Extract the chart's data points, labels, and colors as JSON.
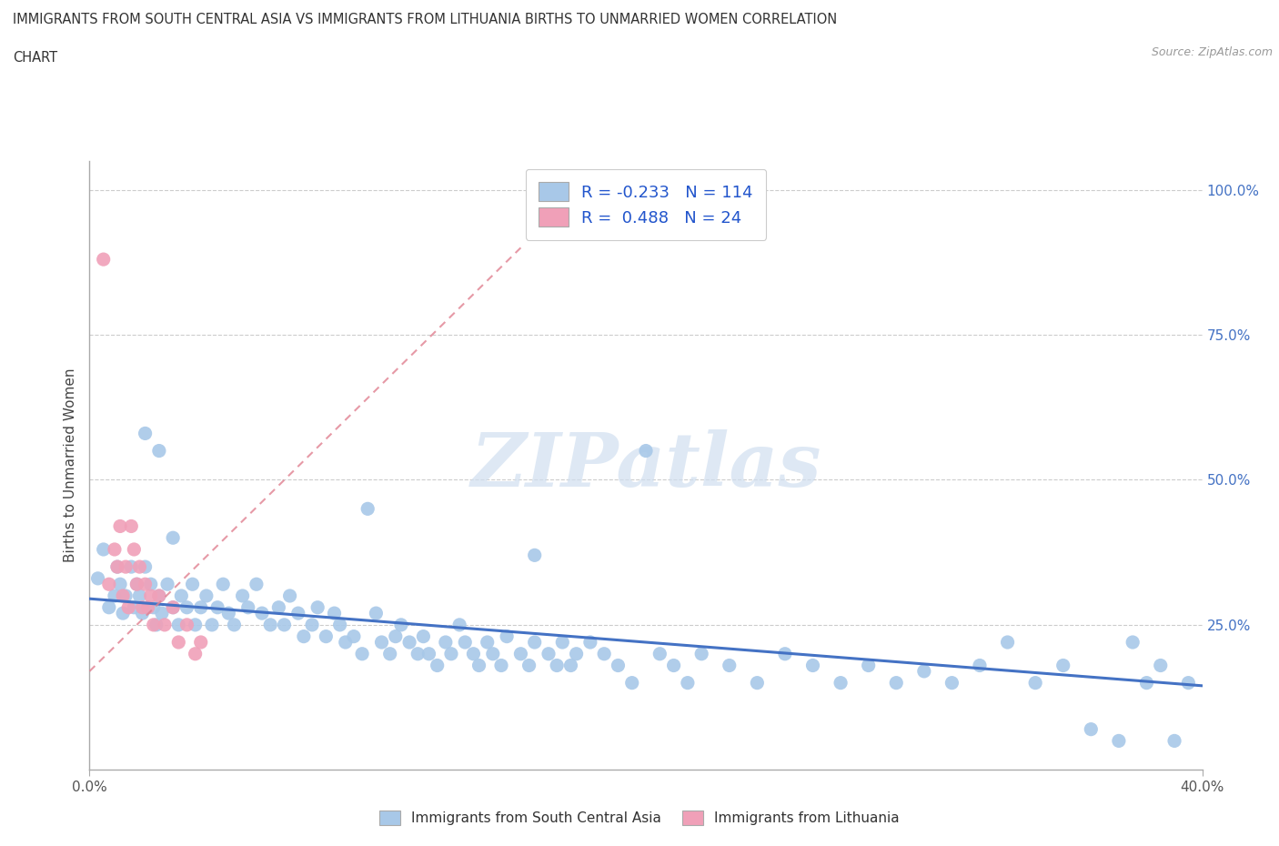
{
  "title_line1": "IMMIGRANTS FROM SOUTH CENTRAL ASIA VS IMMIGRANTS FROM LITHUANIA BIRTHS TO UNMARRIED WOMEN CORRELATION",
  "title_line2": "CHART",
  "source_text": "Source: ZipAtlas.com",
  "ylabel": "Births to Unmarried Women",
  "xlim": [
    0.0,
    0.4
  ],
  "ylim": [
    0.0,
    1.05
  ],
  "xtick_positions": [
    0.0,
    0.4
  ],
  "xtick_labels": [
    "0.0%",
    "40.0%"
  ],
  "ytick_positions": [
    0.25,
    0.5,
    0.75,
    1.0
  ],
  "ytick_labels": [
    "25.0%",
    "50.0%",
    "75.0%",
    "100.0%"
  ],
  "blue_color": "#a8c8e8",
  "pink_color": "#f0a0b8",
  "blue_line_color": "#4472c4",
  "pink_line_color": "#e08090",
  "R_blue": -0.233,
  "N_blue": 114,
  "R_pink": 0.488,
  "N_pink": 24,
  "legend_label_blue": "Immigrants from South Central Asia",
  "legend_label_pink": "Immigrants from Lithuania",
  "watermark_text": "ZIPatlas",
  "blue_trend_x": [
    0.0,
    0.4
  ],
  "blue_trend_y": [
    0.295,
    0.145
  ],
  "pink_trend_x": [
    0.0,
    0.155
  ],
  "pink_trend_y": [
    0.17,
    0.9
  ],
  "blue_dots_x": [
    0.003,
    0.005,
    0.007,
    0.009,
    0.01,
    0.011,
    0.012,
    0.013,
    0.015,
    0.016,
    0.017,
    0.018,
    0.019,
    0.02,
    0.021,
    0.022,
    0.023,
    0.024,
    0.025,
    0.026,
    0.028,
    0.03,
    0.032,
    0.033,
    0.035,
    0.037,
    0.038,
    0.04,
    0.042,
    0.044,
    0.046,
    0.048,
    0.05,
    0.052,
    0.055,
    0.057,
    0.06,
    0.062,
    0.065,
    0.068,
    0.07,
    0.072,
    0.075,
    0.077,
    0.08,
    0.082,
    0.085,
    0.088,
    0.09,
    0.092,
    0.095,
    0.098,
    0.1,
    0.103,
    0.105,
    0.108,
    0.11,
    0.112,
    0.115,
    0.118,
    0.12,
    0.122,
    0.125,
    0.128,
    0.13,
    0.133,
    0.135,
    0.138,
    0.14,
    0.143,
    0.145,
    0.148,
    0.15,
    0.155,
    0.158,
    0.16,
    0.165,
    0.168,
    0.17,
    0.173,
    0.175,
    0.18,
    0.185,
    0.19,
    0.195,
    0.2,
    0.205,
    0.21,
    0.215,
    0.22,
    0.23,
    0.24,
    0.25,
    0.26,
    0.27,
    0.28,
    0.29,
    0.3,
    0.31,
    0.32,
    0.33,
    0.34,
    0.35,
    0.36,
    0.37,
    0.375,
    0.38,
    0.385,
    0.39,
    0.395,
    0.02,
    0.025,
    0.03,
    0.16
  ],
  "blue_dots_y": [
    0.33,
    0.38,
    0.28,
    0.3,
    0.35,
    0.32,
    0.27,
    0.3,
    0.35,
    0.28,
    0.32,
    0.3,
    0.27,
    0.35,
    0.28,
    0.32,
    0.28,
    0.25,
    0.3,
    0.27,
    0.32,
    0.28,
    0.25,
    0.3,
    0.28,
    0.32,
    0.25,
    0.28,
    0.3,
    0.25,
    0.28,
    0.32,
    0.27,
    0.25,
    0.3,
    0.28,
    0.32,
    0.27,
    0.25,
    0.28,
    0.25,
    0.3,
    0.27,
    0.23,
    0.25,
    0.28,
    0.23,
    0.27,
    0.25,
    0.22,
    0.23,
    0.2,
    0.45,
    0.27,
    0.22,
    0.2,
    0.23,
    0.25,
    0.22,
    0.2,
    0.23,
    0.2,
    0.18,
    0.22,
    0.2,
    0.25,
    0.22,
    0.2,
    0.18,
    0.22,
    0.2,
    0.18,
    0.23,
    0.2,
    0.18,
    0.22,
    0.2,
    0.18,
    0.22,
    0.18,
    0.2,
    0.22,
    0.2,
    0.18,
    0.15,
    0.55,
    0.2,
    0.18,
    0.15,
    0.2,
    0.18,
    0.15,
    0.2,
    0.18,
    0.15,
    0.18,
    0.15,
    0.17,
    0.15,
    0.18,
    0.22,
    0.15,
    0.18,
    0.07,
    0.05,
    0.22,
    0.15,
    0.18,
    0.05,
    0.15,
    0.58,
    0.55,
    0.4,
    0.37
  ],
  "pink_dots_x": [
    0.005,
    0.007,
    0.009,
    0.01,
    0.011,
    0.012,
    0.013,
    0.014,
    0.015,
    0.016,
    0.017,
    0.018,
    0.019,
    0.02,
    0.021,
    0.022,
    0.023,
    0.025,
    0.027,
    0.03,
    0.032,
    0.035,
    0.038,
    0.04
  ],
  "pink_dots_y": [
    0.88,
    0.32,
    0.38,
    0.35,
    0.42,
    0.3,
    0.35,
    0.28,
    0.42,
    0.38,
    0.32,
    0.35,
    0.28,
    0.32,
    0.28,
    0.3,
    0.25,
    0.3,
    0.25,
    0.28,
    0.22,
    0.25,
    0.2,
    0.22
  ]
}
